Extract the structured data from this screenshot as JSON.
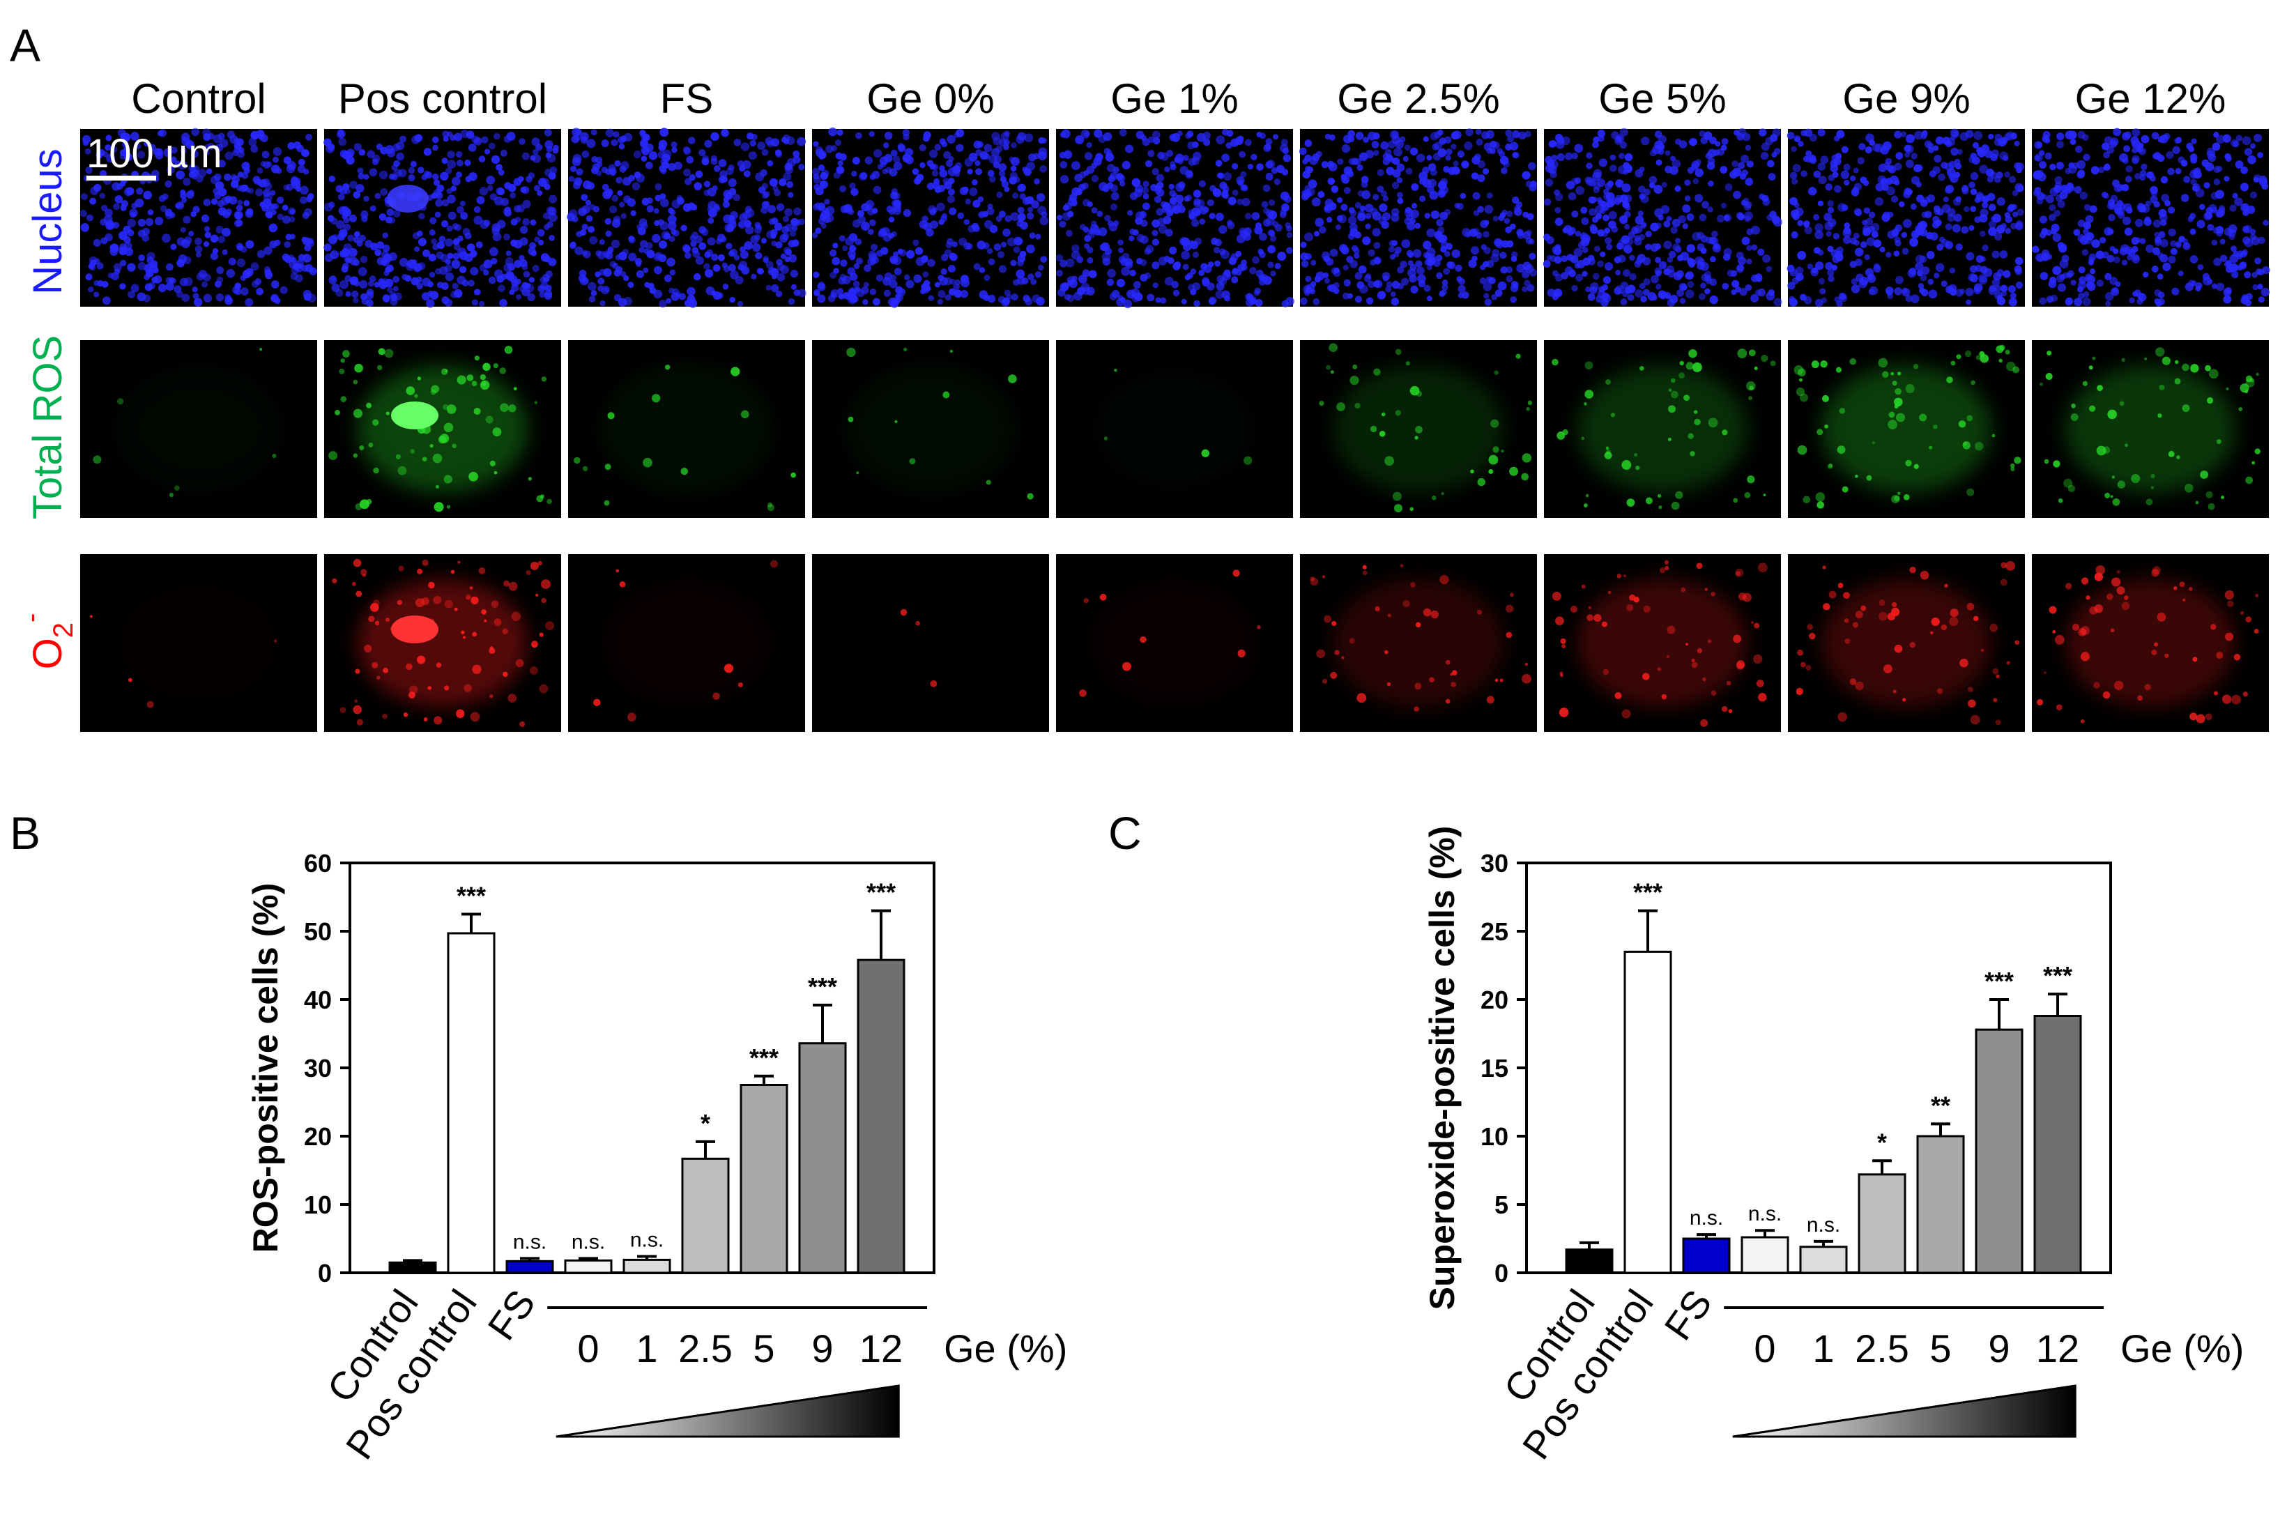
{
  "panel_letters": {
    "a": "A",
    "b": "B",
    "c": "C"
  },
  "panel_a": {
    "columns": [
      "Control",
      "Pos control",
      "FS",
      "Ge 0%",
      "Ge 1%",
      "Ge 2.5%",
      "Ge 5%",
      "Ge 9%",
      "Ge 12%"
    ],
    "rows": [
      {
        "key": "nucleus",
        "label": "Nucleus",
        "color": "#1a1aff"
      },
      {
        "key": "total_ros",
        "label": "Total ROS",
        "color": "#00b050"
      },
      {
        "key": "superoxide",
        "label": "O2-",
        "label_main": "O",
        "label_sub": "2",
        "label_sup": "-",
        "color": "#ff0000"
      }
    ],
    "scale_bar": "100 µm",
    "ros_intensity": [
      0.04,
      0.55,
      0.1,
      0.08,
      0.03,
      0.28,
      0.38,
      0.5,
      0.45
    ],
    "superoxide_intensity": [
      0.03,
      0.6,
      0.06,
      0.02,
      0.06,
      0.3,
      0.42,
      0.4,
      0.42
    ],
    "nucleus_intensity": [
      0.75,
      0.75,
      0.75,
      0.75,
      0.75,
      0.75,
      0.75,
      0.75,
      0.75
    ]
  },
  "chart_data": [
    {
      "type": "bar",
      "title": "",
      "xlabel": "Ge (%)",
      "ylabel": "ROS-positive cells (%)",
      "ylim": [
        0,
        60
      ],
      "yticks": [
        0,
        10,
        20,
        30,
        40,
        50,
        60
      ],
      "categories": [
        "Control",
        "Pos control",
        "FS",
        "0",
        "1",
        "2.5",
        "5",
        "9",
        "12"
      ],
      "group_categories": [
        "Control",
        "Pos control",
        "FS"
      ],
      "ge_ticks": [
        "0",
        "1",
        "2.5",
        "5",
        "9",
        "12"
      ],
      "values": [
        1.5,
        49.7,
        1.7,
        1.8,
        1.9,
        16.7,
        27.5,
        33.6,
        45.8
      ],
      "errors": [
        0.3,
        2.8,
        0.4,
        0.3,
        0.5,
        2.5,
        1.3,
        5.6,
        7.2
      ],
      "significance": [
        "",
        "***",
        "n.s.",
        "n.s.",
        "n.s.",
        "*",
        "***",
        "***",
        "***"
      ],
      "colors": [
        "#000000",
        "#ffffff",
        "#0000cc",
        "#f4f4f4",
        "#dcdcdc",
        "#bdbdbd",
        "#a9a9a9",
        "#8f8f8f",
        "#707070"
      ],
      "grid": false
    },
    {
      "type": "bar",
      "title": "",
      "xlabel": "Ge (%)",
      "ylabel": "Superoxide-positive cells (%)",
      "ylim": [
        0,
        30
      ],
      "yticks": [
        0,
        5,
        10,
        15,
        20,
        25,
        30
      ],
      "categories": [
        "Control",
        "Pos control",
        "FS",
        "0",
        "1",
        "2.5",
        "5",
        "9",
        "12"
      ],
      "group_categories": [
        "Control",
        "Pos control",
        "FS"
      ],
      "ge_ticks": [
        "0",
        "1",
        "2.5",
        "5",
        "9",
        "12"
      ],
      "values": [
        1.7,
        23.5,
        2.5,
        2.6,
        1.9,
        7.2,
        10.0,
        17.8,
        18.8
      ],
      "errors": [
        0.5,
        3.0,
        0.3,
        0.5,
        0.4,
        1.0,
        0.9,
        2.2,
        1.6
      ],
      "significance": [
        "",
        "***",
        "n.s.",
        "n.s.",
        "n.s.",
        "*",
        "**",
        "***",
        "***"
      ],
      "colors": [
        "#000000",
        "#ffffff",
        "#0000cc",
        "#f4f4f4",
        "#dcdcdc",
        "#bdbdbd",
        "#a9a9a9",
        "#8f8f8f",
        "#707070"
      ],
      "grid": false
    }
  ]
}
